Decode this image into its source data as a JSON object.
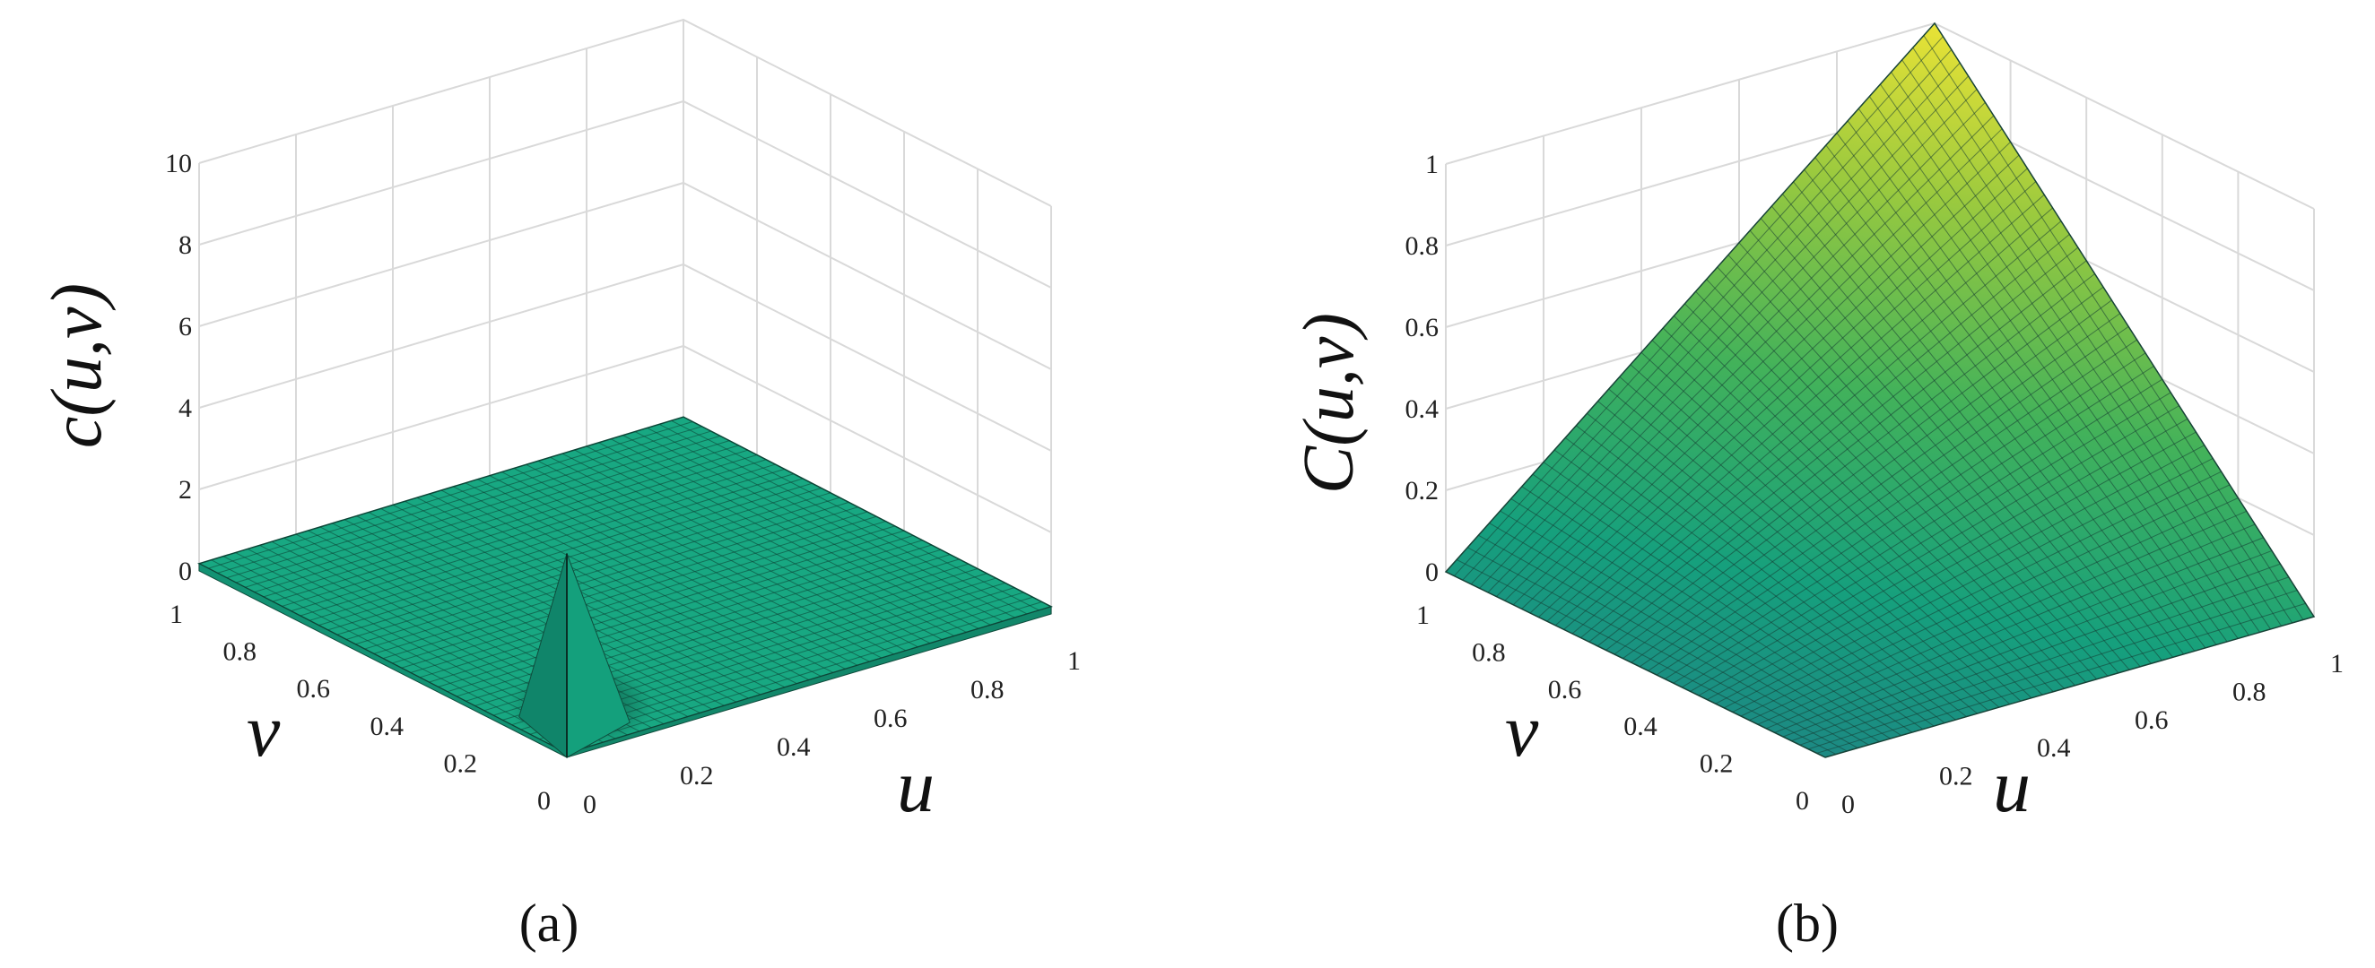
{
  "chart_data": [
    {
      "type": "surface",
      "panel": "a",
      "caption": "(a)",
      "xlabel": "u",
      "ylabel": "v",
      "zlabel": "c(u,v)",
      "xlim": [
        0,
        1
      ],
      "ylim": [
        0,
        1
      ],
      "zlim": [
        0,
        10
      ],
      "xticks": [
        "0",
        "0.2",
        "0.4",
        "0.6",
        "0.8",
        "1"
      ],
      "yticks": [
        "0",
        "0.2",
        "0.4",
        "0.6",
        "0.8",
        "1"
      ],
      "zticks": [
        "0",
        "2",
        "4",
        "6",
        "8",
        "10"
      ],
      "grid": true,
      "surface_color": "#18a882",
      "spike_peak": {
        "u": 0,
        "v": 0,
        "c": 5
      },
      "surface_samples": [
        {
          "u": 0,
          "v": 0,
          "c": 5
        },
        {
          "u": 0.5,
          "v": 0.5,
          "c": 0.2
        },
        {
          "u": 1,
          "v": 1,
          "c": 0.1
        },
        {
          "u": 1,
          "v": 0,
          "c": 0.1
        },
        {
          "u": 0,
          "v": 1,
          "c": 0.1
        }
      ]
    },
    {
      "type": "surface",
      "panel": "b",
      "caption": "(b)",
      "xlabel": "u",
      "ylabel": "v",
      "zlabel": "C(u,v)",
      "xlim": [
        0,
        1
      ],
      "ylim": [
        0,
        1
      ],
      "zlim": [
        0,
        1
      ],
      "xticks": [
        "0",
        "0.2",
        "0.4",
        "0.6",
        "0.8",
        "1"
      ],
      "yticks": [
        "0",
        "0.2",
        "0.4",
        "0.6",
        "0.8",
        "1"
      ],
      "zticks": [
        "0",
        "0.2",
        "0.4",
        "0.6",
        "0.8",
        "1"
      ],
      "grid": true,
      "colormap": [
        "#1f7f86",
        "#16a07d",
        "#43b25a",
        "#9cca3e",
        "#e7e236"
      ],
      "surface_samples": [
        {
          "u": 0,
          "v": 0,
          "C": 0
        },
        {
          "u": 1,
          "v": 0,
          "C": 0
        },
        {
          "u": 0,
          "v": 1,
          "C": 0
        },
        {
          "u": 0.5,
          "v": 0.5,
          "C": 0.25
        },
        {
          "u": 1,
          "v": 1,
          "C": 1
        }
      ]
    }
  ]
}
